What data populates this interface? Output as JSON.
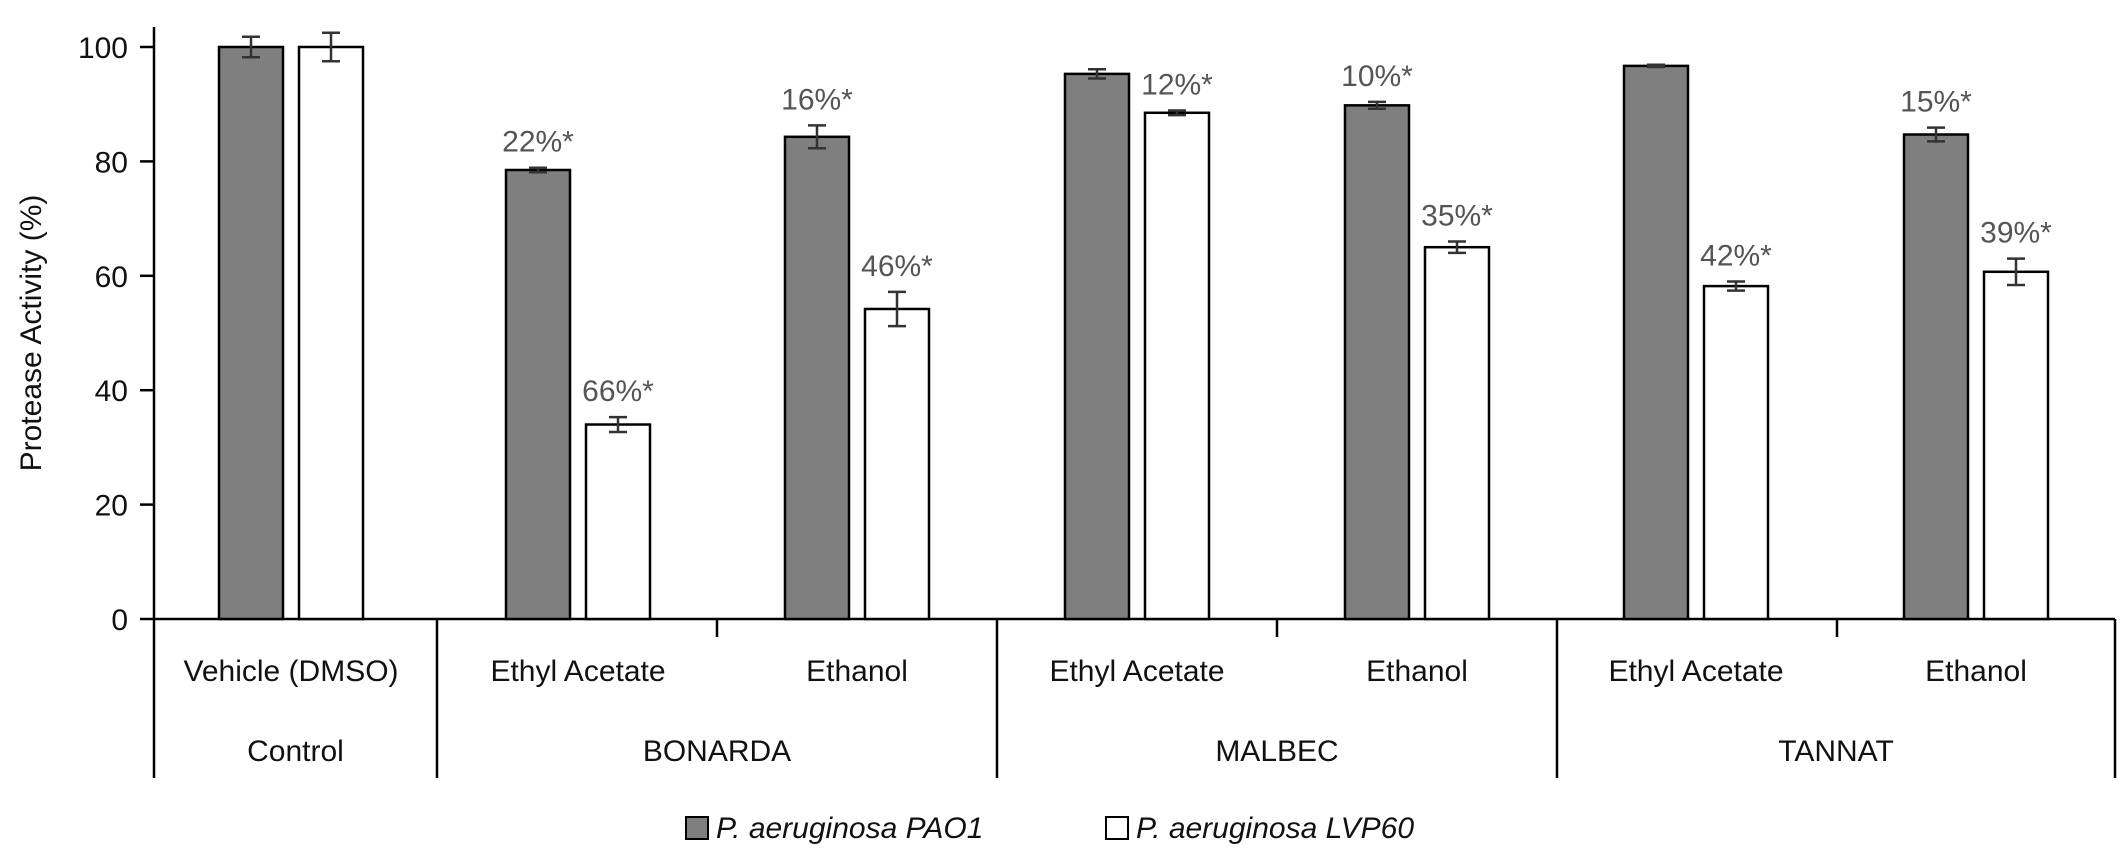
{
  "chart_data": {
    "type": "bar",
    "title": "",
    "xlabel": "",
    "ylabel": "Protease Activity (%)",
    "ylim": [
      0,
      100
    ],
    "yticks": [
      0,
      20,
      40,
      60,
      80,
      100
    ],
    "groups": [
      {
        "name": "Control",
        "categories": [
          "Vehicle (DMSO)"
        ]
      },
      {
        "name": "BONARDA",
        "categories": [
          "Ethyl Acetate",
          "Ethanol"
        ]
      },
      {
        "name": "MALBEC",
        "categories": [
          "Ethyl Acetate",
          "Ethanol"
        ]
      },
      {
        "name": "TANNAT",
        "categories": [
          "Ethyl Acetate",
          "Ethanol"
        ]
      }
    ],
    "categories": [
      "Vehicle (DMSO)",
      "Ethyl Acetate",
      "Ethanol",
      "Ethyl Acetate",
      "Ethanol",
      "Ethyl Acetate",
      "Ethanol"
    ],
    "series": [
      {
        "name": "P. aeruginosa PAO1",
        "color": "#7f7f7f",
        "values": [
          100,
          78.5,
          84.3,
          95.3,
          89.8,
          96.7,
          84.7
        ],
        "errors": [
          1.8,
          0.4,
          2.0,
          0.8,
          0.6,
          0.2,
          1.2
        ],
        "labels": [
          "",
          "22%*",
          "16%*",
          "",
          "10%*",
          "",
          "15%*"
        ]
      },
      {
        "name": "P. aeruginosa LVP60",
        "color": "#ffffff",
        "values": [
          100,
          34.0,
          54.2,
          88.5,
          65.0,
          58.2,
          60.7
        ],
        "errors": [
          2.5,
          1.3,
          3.0,
          0.4,
          1.0,
          0.8,
          2.3
        ],
        "labels": [
          "",
          "66%*",
          "46%*",
          "12%*",
          "35%*",
          "42%*",
          "39%*"
        ]
      }
    ],
    "legend_position": "bottom-center"
  }
}
